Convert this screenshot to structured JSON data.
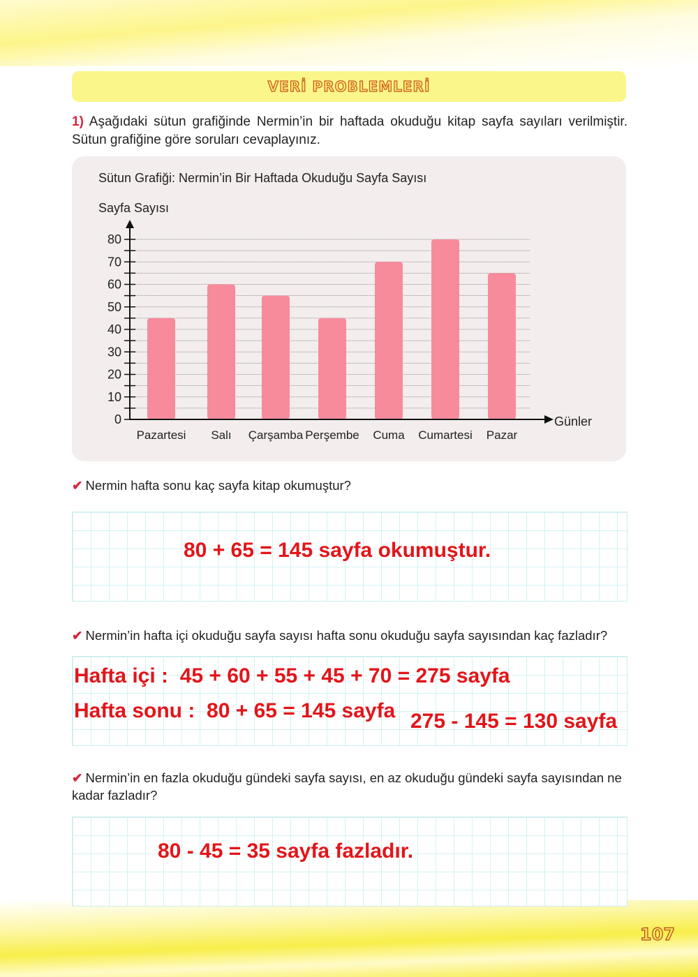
{
  "header": {
    "banner_title": "VERİ PROBLEMLERİ"
  },
  "intro": {
    "number": "1)",
    "text": "Aşağıdaki sütun grafiğinde Nermin’in bir haftada okuduğu kitap sayfa sayıları verilmiştir. Sütun grafiğine göre soruları cevaplayınız."
  },
  "chart_data": {
    "type": "bar",
    "title": "Sütun Grafiği: Nermin’in Bir Haftada Okuduğu Sayfa Sayısı",
    "ylabel": "Sayfa Sayısı",
    "xlabel": "Günler",
    "categories": [
      "Pazartesi",
      "Salı",
      "Çarşamba",
      "Perşembe",
      "Cuma",
      "Cumartesi",
      "Pazar"
    ],
    "values": [
      45,
      60,
      55,
      45,
      70,
      80,
      65
    ],
    "ylim": [
      0,
      80
    ],
    "yticks": [
      "0",
      "10",
      "20",
      "30",
      "40",
      "50",
      "60",
      "70",
      "80"
    ],
    "grid": true,
    "bar_color": "#f78b9b"
  },
  "questions": [
    {
      "text": "Nermin hafta sonu kaç sayfa kitap okumuştur?",
      "answers": [
        "80 + 65 = 145 sayfa okumuştur."
      ]
    },
    {
      "text": "Nermin’in hafta içi okuduğu sayfa sayısı hafta sonu okuduğu sayfa sayısından kaç fazladır?",
      "answers": [
        "Hafta içi :  45 + 60 + 55 + 45 + 70 = 275 sayfa",
        "Hafta sonu :  80 + 65 = 145 sayfa",
        "275 - 145 = 130 sayfa"
      ]
    },
    {
      "text": "Nermin’in en fazla okuduğu gündeki sayfa sayısı, en az okuduğu gündeki sayfa sayısından ne kadar fazladır?",
      "answers": [
        "80 - 45 = 35 sayfa fazladır."
      ]
    }
  ],
  "footer": {
    "page_number": "107"
  },
  "colors": {
    "answer": "#e3151a",
    "accent": "#d7263d",
    "banner": "#fbf68a"
  }
}
